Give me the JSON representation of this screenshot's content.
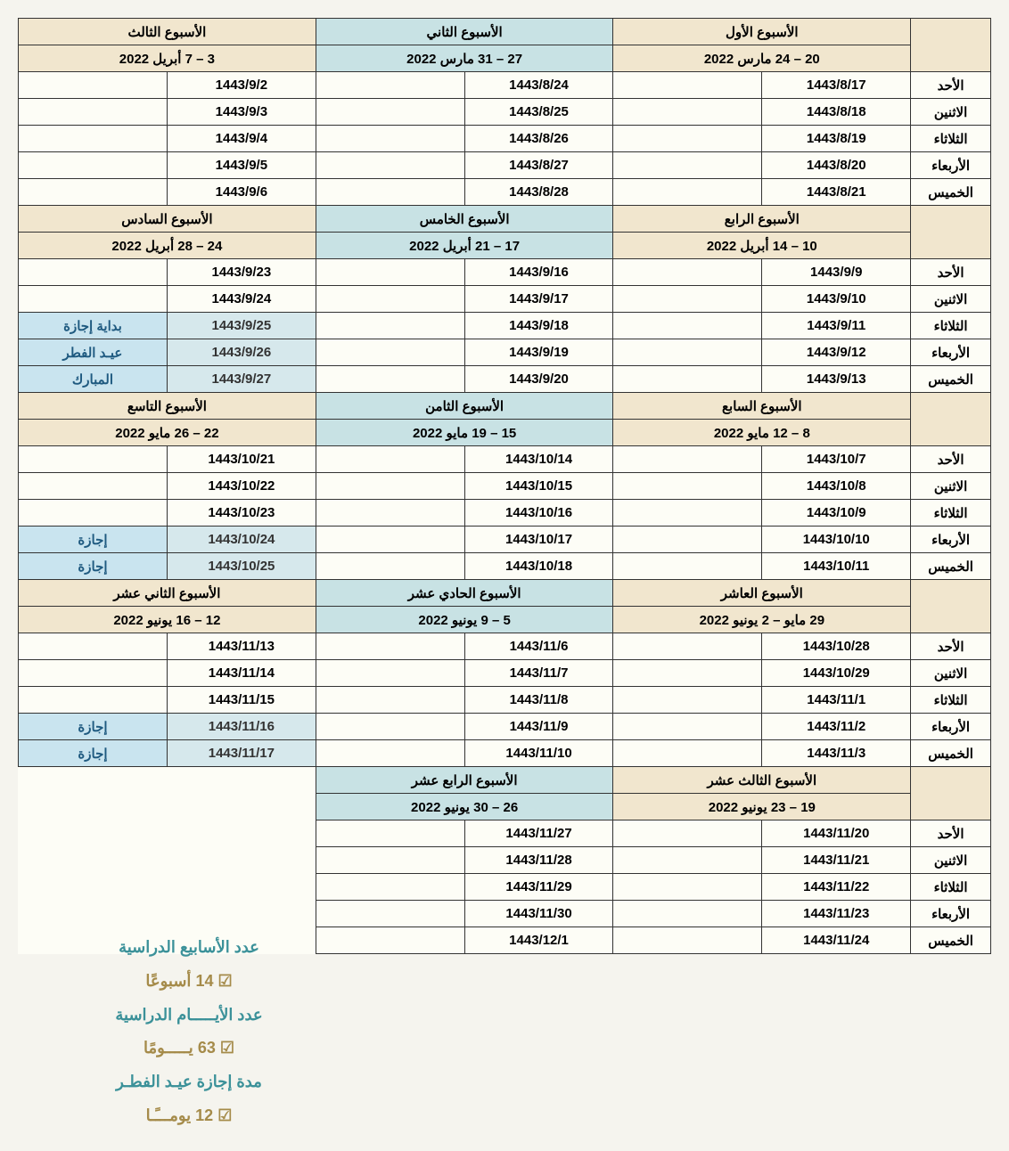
{
  "colors": {
    "bg": "#f5f4ee",
    "table_bg": "#fdfdf6",
    "header_tan": "#f1e6ce",
    "header_teal": "#c8e2e4",
    "note_blue_bg": "#c9e4ef",
    "note_blue_fg": "#1f5a80",
    "border": "#333333",
    "summary_teal": "#3b9199",
    "summary_gold": "#a58b4a"
  },
  "days": [
    "الأحد",
    "الاثنين",
    "الثلاثاء",
    "الأربعاء",
    "الخميس"
  ],
  "blocks": [
    {
      "weeks": [
        {
          "title": "الأسبوع الأول",
          "range": "20 – 24 مارس 2022",
          "header_class": "week-header",
          "dates": [
            "1443/8/17",
            "1443/8/18",
            "1443/8/19",
            "1443/8/20",
            "1443/8/21"
          ],
          "notes": [
            "",
            "",
            "",
            "",
            ""
          ]
        },
        {
          "title": "الأسبوع الثاني",
          "range": "27 – 31 مارس 2022",
          "header_class": "week-header-teal",
          "dates": [
            "1443/8/24",
            "1443/8/25",
            "1443/8/26",
            "1443/8/27",
            "1443/8/28"
          ],
          "notes": [
            "",
            "",
            "",
            "",
            ""
          ]
        },
        {
          "title": "الأسبوع الثالث",
          "range": "3 – 7 أبريل 2022",
          "header_class": "week-header",
          "dates": [
            "1443/9/2",
            "1443/9/3",
            "1443/9/4",
            "1443/9/5",
            "1443/9/6"
          ],
          "notes": [
            "",
            "",
            "",
            "",
            ""
          ]
        }
      ]
    },
    {
      "weeks": [
        {
          "title": "الأسبوع الرابع",
          "range": "10 – 14 أبريل 2022",
          "header_class": "week-header",
          "dates": [
            "1443/9/9",
            "1443/9/10",
            "1443/9/11",
            "1443/9/12",
            "1443/9/13"
          ],
          "notes": [
            "",
            "",
            "",
            "",
            ""
          ]
        },
        {
          "title": "الأسبوع الخامس",
          "range": "17 – 21 أبريل 2022",
          "header_class": "week-header-teal",
          "dates": [
            "1443/9/16",
            "1443/9/17",
            "1443/9/18",
            "1443/9/19",
            "1443/9/20"
          ],
          "notes": [
            "",
            "",
            "",
            "",
            ""
          ]
        },
        {
          "title": "الأسبوع السادس",
          "range": "24 – 28 أبريل 2022",
          "header_class": "week-header",
          "dates": [
            "1443/9/23",
            "1443/9/24",
            "1443/9/25",
            "1443/9/26",
            "1443/9/27"
          ],
          "notes": [
            "",
            "",
            "بداية إجازة",
            "عيـد الفطر",
            "المبارك"
          ],
          "note_merge": [
            0,
            0,
            1,
            1,
            1
          ]
        }
      ]
    },
    {
      "weeks": [
        {
          "title": "الأسبوع السابع",
          "range": "8 – 12 مايو 2022",
          "header_class": "week-header",
          "dates": [
            "1443/10/7",
            "1443/10/8",
            "1443/10/9",
            "1443/10/10",
            "1443/10/11"
          ],
          "notes": [
            "",
            "",
            "",
            "",
            ""
          ]
        },
        {
          "title": "الأسبوع الثامن",
          "range": "15 – 19 مايو 2022",
          "header_class": "week-header-teal",
          "dates": [
            "1443/10/14",
            "1443/10/15",
            "1443/10/16",
            "1443/10/17",
            "1443/10/18"
          ],
          "notes": [
            "",
            "",
            "",
            "",
            ""
          ]
        },
        {
          "title": "الأسبوع التاسع",
          "range": "22 – 26 مايو 2022",
          "header_class": "week-header",
          "dates": [
            "1443/10/21",
            "1443/10/22",
            "1443/10/23",
            "1443/10/24",
            "1443/10/25"
          ],
          "notes": [
            "",
            "",
            "",
            "إجازة",
            "إجازة"
          ]
        }
      ]
    },
    {
      "weeks": [
        {
          "title": "الأسبوع العاشر",
          "range": "29 مايو – 2 يونيو 2022",
          "header_class": "week-header",
          "dates": [
            "1443/10/28",
            "1443/10/29",
            "1443/11/1",
            "1443/11/2",
            "1443/11/3"
          ],
          "notes": [
            "",
            "",
            "",
            "",
            ""
          ]
        },
        {
          "title": "الأسبوع الحادي عشر",
          "range": "5 – 9 يونيو 2022",
          "header_class": "week-header-teal",
          "dates": [
            "1443/11/6",
            "1443/11/7",
            "1443/11/8",
            "1443/11/9",
            "1443/11/10"
          ],
          "notes": [
            "",
            "",
            "",
            "",
            ""
          ]
        },
        {
          "title": "الأسبوع الثاني عشر",
          "range": "12 – 16 يونيو 2022",
          "header_class": "week-header",
          "dates": [
            "1443/11/13",
            "1443/11/14",
            "1443/11/15",
            "1443/11/16",
            "1443/11/17"
          ],
          "notes": [
            "",
            "",
            "",
            "إجازة",
            "إجازة"
          ]
        }
      ]
    },
    {
      "weeks": [
        {
          "title": "الأسبوع الثالث عشر",
          "range": "19 – 23 يونيو 2022",
          "header_class": "week-header",
          "dates": [
            "1443/11/20",
            "1443/11/21",
            "1443/11/22",
            "1443/11/23",
            "1443/11/24"
          ],
          "notes": [
            "",
            "",
            "",
            "",
            ""
          ]
        },
        {
          "title": "الأسبوع الرابع عشر",
          "range": "26 – 30 يونيو 2022",
          "header_class": "week-header-teal",
          "dates": [
            "1443/11/27",
            "1443/11/28",
            "1443/11/29",
            "1443/11/30",
            "1443/12/1"
          ],
          "notes": [
            "",
            "",
            "",
            "",
            ""
          ]
        }
      ],
      "last_block": true
    }
  ],
  "summary": {
    "line1": "عدد الأسابيع الدراسية",
    "val1": "14 أسبوعًا",
    "line2": "عدد الأيـــــام الدراسية",
    "val2": "63 يـــــومًا",
    "line3": "مدة إجازة عيـد الفطـر",
    "val3": "12 يومـــًـا"
  }
}
